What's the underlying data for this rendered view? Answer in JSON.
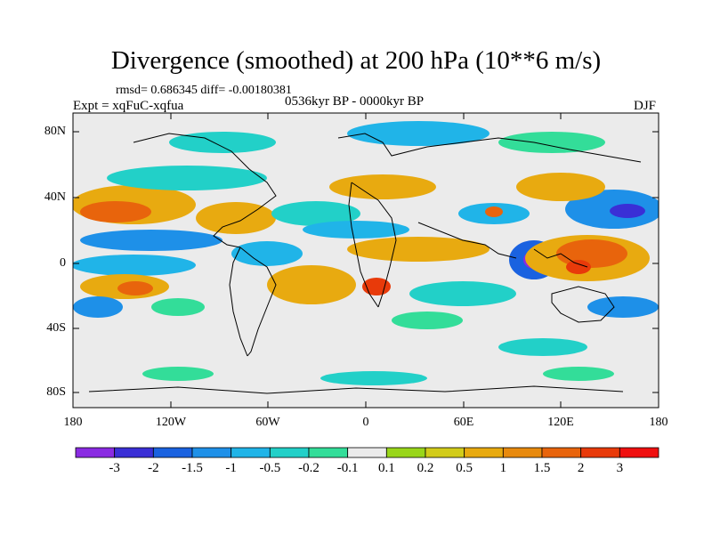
{
  "title": "Divergence (smoothed) at 200 hPa (10**6 m/s)",
  "stats": "rmsd= 0.686345 diff= -0.00180381",
  "experiment": "Expt = xqFuC-xqfua",
  "period": "0536kyr BP - 0000kyr BP",
  "season": "DJF",
  "lat_labels": [
    "80N",
    "40N",
    "0",
    "40S",
    "80S"
  ],
  "lon_labels": [
    "180",
    "120W",
    "60W",
    "0",
    "60E",
    "120E",
    "180"
  ],
  "colorbar": {
    "labels": [
      "-3",
      "-2",
      "-1.5",
      "-1",
      "-0.5",
      "-0.2",
      "-0.1",
      "0.1",
      "0.2",
      "0.5",
      "1",
      "1.5",
      "2",
      "3"
    ],
    "colors": [
      "#8a2be2",
      "#3a2fd6",
      "#1a62e0",
      "#1e90e8",
      "#20b4e8",
      "#22d0c8",
      "#33dd99",
      "#ebebeb",
      "#99d61a",
      "#d2cc1a",
      "#e8aa10",
      "#e88a0e",
      "#e8640c",
      "#e83a0a",
      "#f01010"
    ]
  },
  "colors": {
    "land_fill": "#ebebeb",
    "coast": "#000000"
  }
}
